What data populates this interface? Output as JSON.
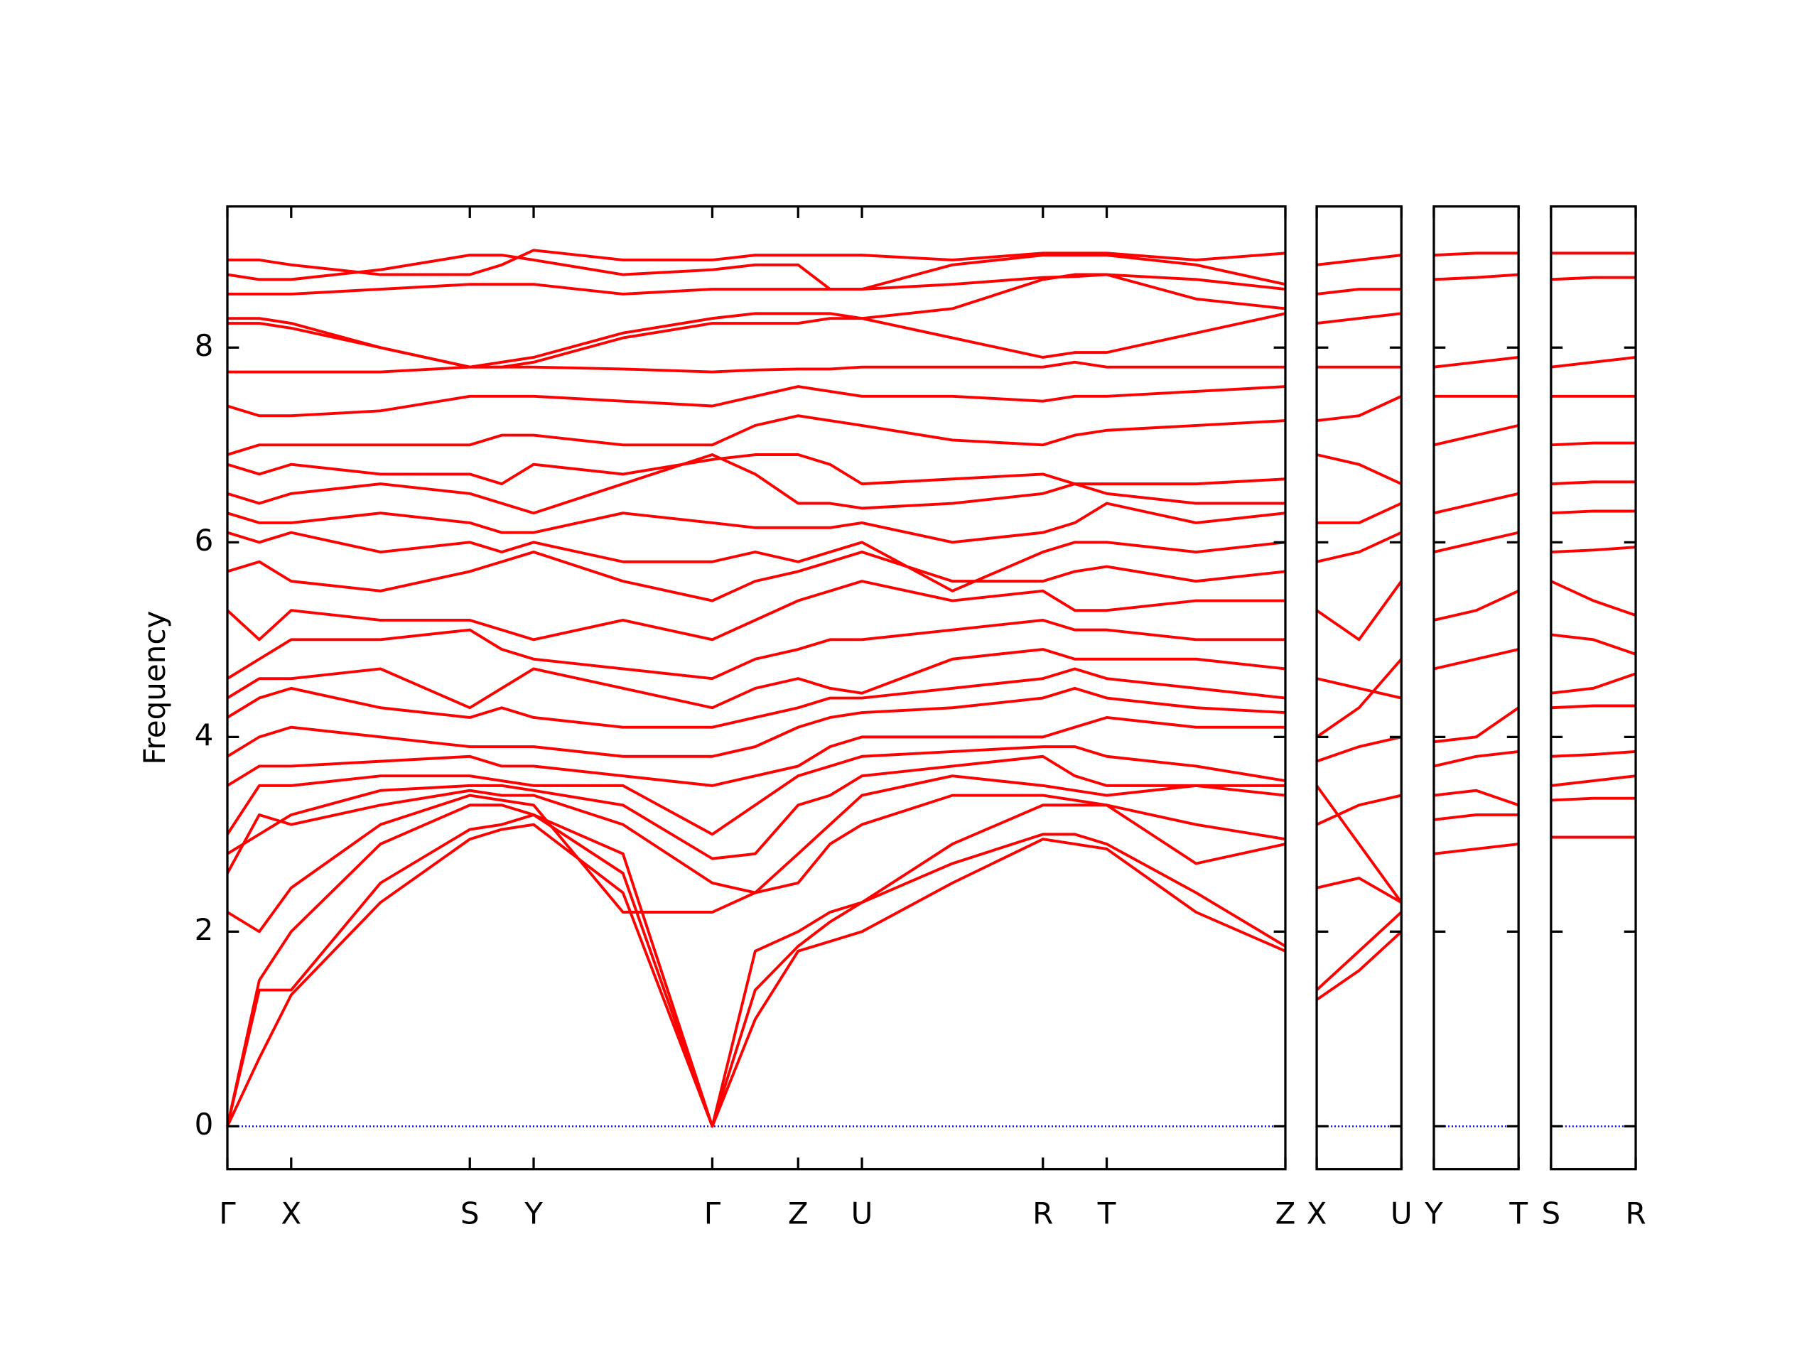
{
  "chart_data": [
    {
      "type": "line",
      "ylabel": "Frequency",
      "color": "#ff0000",
      "hline": 0,
      "hline_color": "#0000ff",
      "x": [
        0,
        0.275,
        0.55,
        1.32,
        2.09,
        2.365,
        2.64,
        3.41,
        4.18,
        4.55,
        4.92,
        5.195,
        5.47,
        6.25,
        7.03,
        7.305,
        7.58,
        8.35,
        9.12
      ],
      "xlim": [
        0,
        9.12
      ],
      "xticks": [
        {
          "value": 0,
          "label": "Γ"
        },
        {
          "value": 0.55,
          "label": "X"
        },
        {
          "value": 2.09,
          "label": "S"
        },
        {
          "value": 2.64,
          "label": "Y"
        },
        {
          "value": 4.18,
          "label": "Γ"
        },
        {
          "value": 4.92,
          "label": "Z"
        },
        {
          "value": 5.47,
          "label": "U"
        },
        {
          "value": 7.03,
          "label": "R"
        },
        {
          "value": 7.58,
          "label": "T"
        },
        {
          "value": 9.12,
          "label": "Z"
        }
      ],
      "ylim": [
        -0.44,
        9.45
      ],
      "yticks": [
        0,
        2,
        4,
        6,
        8
      ],
      "series": [
        {
          "values": [
            0,
            0.7,
            1.35,
            2.3,
            2.95,
            3.05,
            3.1,
            2.4,
            0,
            1.1,
            1.8,
            1.9,
            2.0,
            2.5,
            2.95,
            2.9,
            2.85,
            2.2,
            1.8
          ]
        },
        {
          "values": [
            0,
            1.4,
            1.4,
            2.5,
            3.05,
            3.1,
            3.2,
            2.6,
            0,
            1.4,
            1.85,
            2.1,
            2.3,
            2.7,
            3.0,
            3.0,
            2.9,
            2.4,
            1.85
          ]
        },
        {
          "values": [
            0,
            1.5,
            2.0,
            2.9,
            3.3,
            3.3,
            3.2,
            2.8,
            0,
            1.8,
            2.0,
            2.2,
            2.3,
            2.9,
            3.3,
            3.3,
            3.3,
            2.7,
            2.9
          ]
        },
        {
          "values": [
            2.2,
            2.0,
            2.45,
            3.1,
            3.4,
            3.35,
            3.3,
            2.2,
            2.2,
            2.4,
            2.5,
            2.9,
            3.1,
            3.4,
            3.4,
            3.35,
            3.3,
            3.1,
            2.95
          ]
        },
        {
          "values": [
            2.6,
            3.2,
            3.1,
            3.3,
            3.45,
            3.4,
            3.4,
            3.1,
            2.5,
            2.4,
            2.8,
            3.1,
            3.4,
            3.6,
            3.5,
            3.45,
            3.4,
            3.5,
            3.4
          ]
        },
        {
          "values": [
            2.8,
            3.0,
            3.2,
            3.45,
            3.5,
            3.5,
            3.45,
            3.3,
            2.75,
            2.8,
            3.3,
            3.4,
            3.6,
            3.7,
            3.8,
            3.6,
            3.5,
            3.5,
            3.5
          ]
        },
        {
          "values": [
            3.0,
            3.5,
            3.5,
            3.6,
            3.6,
            3.55,
            3.5,
            3.5,
            3.0,
            3.3,
            3.6,
            3.7,
            3.8,
            3.85,
            3.9,
            3.9,
            3.8,
            3.7,
            3.55
          ]
        },
        {
          "values": [
            3.5,
            3.7,
            3.7,
            3.75,
            3.8,
            3.7,
            3.7,
            3.6,
            3.5,
            3.6,
            3.7,
            3.9,
            4.0,
            4.0,
            4.0,
            4.1,
            4.2,
            4.1,
            4.1
          ]
        },
        {
          "values": [
            3.8,
            4.0,
            4.1,
            4.0,
            3.9,
            3.9,
            3.9,
            3.8,
            3.8,
            3.9,
            4.1,
            4.2,
            4.25,
            4.3,
            4.4,
            4.5,
            4.4,
            4.3,
            4.25
          ]
        },
        {
          "values": [
            4.2,
            4.4,
            4.5,
            4.3,
            4.2,
            4.3,
            4.2,
            4.1,
            4.1,
            4.2,
            4.3,
            4.4,
            4.4,
            4.5,
            4.6,
            4.7,
            4.6,
            4.5,
            4.4
          ]
        },
        {
          "values": [
            4.4,
            4.6,
            4.6,
            4.7,
            4.3,
            4.5,
            4.7,
            4.5,
            4.3,
            4.5,
            4.6,
            4.5,
            4.45,
            4.8,
            4.9,
            4.8,
            4.8,
            4.8,
            4.7
          ]
        },
        {
          "values": [
            4.6,
            4.8,
            5.0,
            5.0,
            5.1,
            4.9,
            4.8,
            4.7,
            4.6,
            4.8,
            4.9,
            5.0,
            5.0,
            5.1,
            5.2,
            5.1,
            5.1,
            5.0,
            5.0
          ]
        },
        {
          "values": [
            5.3,
            5.0,
            5.3,
            5.2,
            5.2,
            5.1,
            5.0,
            5.2,
            5.0,
            5.2,
            5.4,
            5.5,
            5.6,
            5.4,
            5.5,
            5.3,
            5.3,
            5.4,
            5.4
          ]
        },
        {
          "values": [
            5.7,
            5.8,
            5.6,
            5.5,
            5.7,
            5.8,
            5.9,
            5.6,
            5.4,
            5.6,
            5.7,
            5.8,
            5.9,
            5.6,
            5.6,
            5.7,
            5.75,
            5.6,
            5.7
          ]
        },
        {
          "values": [
            6.1,
            6.0,
            6.1,
            5.9,
            6.0,
            5.9,
            6.0,
            5.8,
            5.8,
            5.9,
            5.8,
            5.9,
            6.0,
            5.5,
            5.9,
            6.0,
            6.0,
            5.9,
            6.0
          ]
        },
        {
          "values": [
            6.3,
            6.2,
            6.2,
            6.3,
            6.2,
            6.1,
            6.1,
            6.3,
            6.2,
            6.15,
            6.15,
            6.15,
            6.2,
            6.0,
            6.1,
            6.2,
            6.4,
            6.2,
            6.3
          ]
        },
        {
          "values": [
            6.5,
            6.4,
            6.5,
            6.6,
            6.5,
            6.4,
            6.3,
            6.6,
            6.9,
            6.7,
            6.4,
            6.4,
            6.35,
            6.4,
            6.5,
            6.6,
            6.5,
            6.4,
            6.4
          ]
        },
        {
          "values": [
            6.8,
            6.7,
            6.8,
            6.7,
            6.7,
            6.6,
            6.8,
            6.7,
            6.85,
            6.9,
            6.9,
            6.8,
            6.6,
            6.65,
            6.7,
            6.6,
            6.6,
            6.6,
            6.65
          ]
        },
        {
          "values": [
            6.9,
            7.0,
            7.0,
            7.0,
            7.0,
            7.1,
            7.1,
            7.0,
            7.0,
            7.2,
            7.3,
            7.25,
            7.2,
            7.05,
            7.0,
            7.1,
            7.15,
            7.2,
            7.25
          ]
        },
        {
          "values": [
            7.4,
            7.3,
            7.3,
            7.35,
            7.5,
            7.5,
            7.5,
            7.45,
            7.4,
            7.5,
            7.6,
            7.55,
            7.5,
            7.5,
            7.45,
            7.5,
            7.5,
            7.55,
            7.6
          ]
        },
        {
          "values": [
            7.75,
            7.75,
            7.75,
            7.75,
            7.8,
            7.8,
            7.8,
            7.78,
            7.75,
            7.77,
            7.78,
            7.78,
            7.8,
            7.8,
            7.8,
            7.85,
            7.8,
            7.8,
            7.8
          ]
        },
        {
          "values": [
            8.25,
            8.25,
            8.2,
            8.0,
            7.8,
            7.8,
            7.85,
            8.1,
            8.25,
            8.25,
            8.25,
            8.3,
            8.3,
            8.1,
            7.9,
            7.95,
            7.95,
            8.15,
            8.35
          ]
        },
        {
          "values": [
            8.3,
            8.3,
            8.25,
            8.0,
            7.8,
            7.85,
            7.9,
            8.15,
            8.3,
            8.35,
            8.35,
            8.35,
            8.3,
            8.4,
            8.7,
            8.75,
            8.75,
            8.5,
            8.4
          ]
        },
        {
          "values": [
            8.55,
            8.55,
            8.55,
            8.6,
            8.65,
            8.65,
            8.65,
            8.55,
            8.6,
            8.6,
            8.6,
            8.6,
            8.6,
            8.65,
            8.72,
            8.73,
            8.75,
            8.7,
            8.6
          ]
        },
        {
          "values": [
            8.75,
            8.7,
            8.7,
            8.8,
            8.95,
            8.95,
            8.9,
            8.75,
            8.8,
            8.85,
            8.85,
            8.6,
            8.6,
            8.85,
            8.95,
            8.95,
            8.95,
            8.85,
            8.65
          ]
        },
        {
          "values": [
            8.9,
            8.9,
            8.85,
            8.75,
            8.75,
            8.85,
            9.0,
            8.9,
            8.9,
            8.95,
            8.95,
            8.95,
            8.95,
            8.9,
            8.97,
            8.97,
            8.97,
            8.9,
            8.97
          ]
        }
      ]
    },
    {
      "type": "line",
      "color": "#ff0000",
      "hline": 0,
      "hline_color": "#0000ff",
      "x": [
        0,
        0.365,
        0.73
      ],
      "xlim": [
        0,
        0.73
      ],
      "xticks": [
        {
          "value": 0,
          "label": "X"
        },
        {
          "value": 0.73,
          "label": "U"
        }
      ],
      "ylim": [
        -0.44,
        9.45
      ],
      "series": [
        {
          "values": [
            1.3,
            1.6,
            2.0
          ]
        },
        {
          "values": [
            1.4,
            1.8,
            2.2
          ]
        },
        {
          "values": [
            2.45,
            2.55,
            2.3
          ]
        },
        {
          "values": [
            3.1,
            3.3,
            3.4
          ]
        },
        {
          "values": [
            3.5,
            2.9,
            2.3
          ]
        },
        {
          "values": [
            3.75,
            3.9,
            4.0
          ]
        },
        {
          "values": [
            4.0,
            4.3,
            4.8
          ]
        },
        {
          "values": [
            4.6,
            4.5,
            4.4
          ]
        },
        {
          "values": [
            5.3,
            5.0,
            5.6
          ]
        },
        {
          "values": [
            5.8,
            5.9,
            6.1
          ]
        },
        {
          "values": [
            6.2,
            6.2,
            6.4
          ]
        },
        {
          "values": [
            6.9,
            6.8,
            6.6
          ]
        },
        {
          "values": [
            7.25,
            7.3,
            7.5
          ]
        },
        {
          "values": [
            7.8,
            7.8,
            7.8
          ]
        },
        {
          "values": [
            8.25,
            8.3,
            8.35
          ]
        },
        {
          "values": [
            8.55,
            8.6,
            8.6
          ]
        },
        {
          "values": [
            8.85,
            8.9,
            8.95
          ]
        }
      ]
    },
    {
      "type": "line",
      "color": "#ff0000",
      "hline": 0,
      "hline_color": "#0000ff",
      "x": [
        0,
        0.365,
        0.73
      ],
      "xlim": [
        0,
        0.73
      ],
      "xticks": [
        {
          "value": 0,
          "label": "Y"
        },
        {
          "value": 0.73,
          "label": "T"
        }
      ],
      "ylim": [
        -0.44,
        9.45
      ],
      "series": [
        {
          "values": [
            2.8,
            2.85,
            2.9
          ]
        },
        {
          "values": [
            3.15,
            3.2,
            3.2
          ]
        },
        {
          "values": [
            3.4,
            3.45,
            3.3
          ]
        },
        {
          "values": [
            3.7,
            3.8,
            3.85
          ]
        },
        {
          "values": [
            3.95,
            4.0,
            4.3
          ]
        },
        {
          "values": [
            4.7,
            4.8,
            4.9
          ]
        },
        {
          "values": [
            5.2,
            5.3,
            5.5
          ]
        },
        {
          "values": [
            5.9,
            6.0,
            6.1
          ]
        },
        {
          "values": [
            6.3,
            6.4,
            6.5
          ]
        },
        {
          "values": [
            7.0,
            7.1,
            7.2
          ]
        },
        {
          "values": [
            7.5,
            7.5,
            7.5
          ]
        },
        {
          "values": [
            7.8,
            7.85,
            7.9
          ]
        },
        {
          "values": [
            8.7,
            8.72,
            8.75
          ]
        },
        {
          "values": [
            8.95,
            8.97,
            8.97
          ]
        }
      ]
    },
    {
      "type": "line",
      "color": "#ff0000",
      "hline": 0,
      "hline_color": "#0000ff",
      "x": [
        0,
        0.365,
        0.73
      ],
      "xlim": [
        0,
        0.73
      ],
      "xticks": [
        {
          "value": 0,
          "label": "S"
        },
        {
          "value": 0.73,
          "label": "R"
        }
      ],
      "ylim": [
        -0.44,
        9.45
      ],
      "series": [
        {
          "values": [
            2.97,
            2.97,
            2.97
          ]
        },
        {
          "values": [
            3.35,
            3.37,
            3.37
          ]
        },
        {
          "values": [
            3.5,
            3.55,
            3.6
          ]
        },
        {
          "values": [
            3.8,
            3.82,
            3.85
          ]
        },
        {
          "values": [
            4.3,
            4.32,
            4.32
          ]
        },
        {
          "values": [
            4.45,
            4.5,
            4.65
          ]
        },
        {
          "values": [
            5.05,
            5.0,
            4.85
          ]
        },
        {
          "values": [
            5.6,
            5.4,
            5.25
          ]
        },
        {
          "values": [
            5.9,
            5.92,
            5.95
          ]
        },
        {
          "values": [
            6.3,
            6.32,
            6.32
          ]
        },
        {
          "values": [
            6.6,
            6.62,
            6.62
          ]
        },
        {
          "values": [
            7.0,
            7.02,
            7.02
          ]
        },
        {
          "values": [
            7.5,
            7.5,
            7.5
          ]
        },
        {
          "values": [
            7.8,
            7.85,
            7.9
          ]
        },
        {
          "values": [
            8.7,
            8.72,
            8.72
          ]
        },
        {
          "values": [
            8.97,
            8.97,
            8.97
          ]
        }
      ]
    }
  ]
}
